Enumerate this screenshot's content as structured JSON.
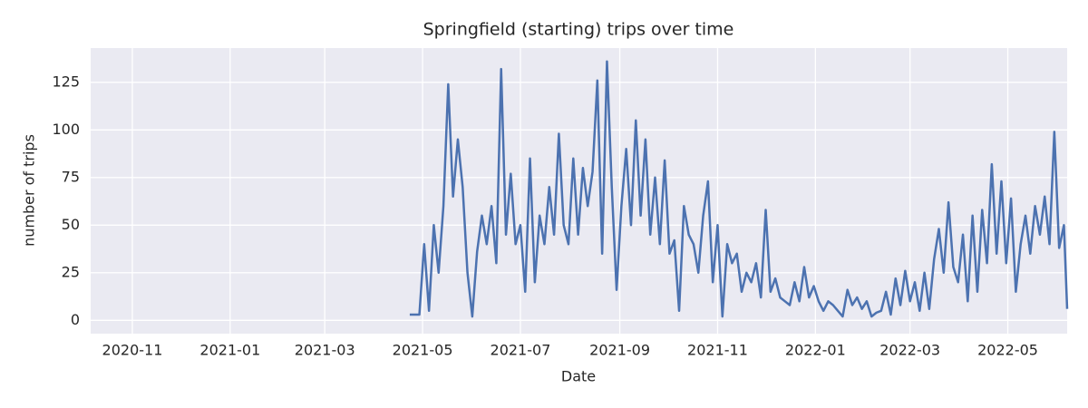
{
  "chart_data": {
    "type": "line",
    "title": "Springfield (starting) trips over time",
    "xlabel": "Date",
    "ylabel": "number of trips",
    "x": [
      "2021-04-23",
      "2021-04-26",
      "2021-04-29",
      "2021-05-02",
      "2021-05-05",
      "2021-05-08",
      "2021-05-11",
      "2021-05-14",
      "2021-05-17",
      "2021-05-20",
      "2021-05-23",
      "2021-05-26",
      "2021-05-29",
      "2021-06-01",
      "2021-06-04",
      "2021-06-07",
      "2021-06-10",
      "2021-06-13",
      "2021-06-16",
      "2021-06-19",
      "2021-06-22",
      "2021-06-25",
      "2021-06-28",
      "2021-07-01",
      "2021-07-04",
      "2021-07-07",
      "2021-07-10",
      "2021-07-13",
      "2021-07-16",
      "2021-07-19",
      "2021-07-22",
      "2021-07-25",
      "2021-07-28",
      "2021-07-31",
      "2021-08-03",
      "2021-08-06",
      "2021-08-09",
      "2021-08-12",
      "2021-08-15",
      "2021-08-18",
      "2021-08-21",
      "2021-08-24",
      "2021-08-27",
      "2021-08-30",
      "2021-09-02",
      "2021-09-05",
      "2021-09-08",
      "2021-09-11",
      "2021-09-14",
      "2021-09-17",
      "2021-09-20",
      "2021-09-23",
      "2021-09-26",
      "2021-09-29",
      "2021-10-02",
      "2021-10-05",
      "2021-10-08",
      "2021-10-11",
      "2021-10-14",
      "2021-10-17",
      "2021-10-20",
      "2021-10-23",
      "2021-10-26",
      "2021-10-29",
      "2021-11-01",
      "2021-11-04",
      "2021-11-07",
      "2021-11-10",
      "2021-11-13",
      "2021-11-16",
      "2021-11-19",
      "2021-11-22",
      "2021-11-25",
      "2021-11-28",
      "2021-12-01",
      "2021-12-04",
      "2021-12-07",
      "2021-12-10",
      "2021-12-13",
      "2021-12-16",
      "2021-12-19",
      "2021-12-22",
      "2021-12-25",
      "2021-12-28",
      "2021-12-31",
      "2022-01-03",
      "2022-01-06",
      "2022-01-09",
      "2022-01-12",
      "2022-01-15",
      "2022-01-18",
      "2022-01-21",
      "2022-01-24",
      "2022-01-27",
      "2022-01-30",
      "2022-02-02",
      "2022-02-05",
      "2022-02-08",
      "2022-02-11",
      "2022-02-14",
      "2022-02-17",
      "2022-02-20",
      "2022-02-23",
      "2022-02-26",
      "2022-03-01",
      "2022-03-04",
      "2022-03-07",
      "2022-03-10",
      "2022-03-13",
      "2022-03-16",
      "2022-03-19",
      "2022-03-22",
      "2022-03-25",
      "2022-03-28",
      "2022-03-31",
      "2022-04-03",
      "2022-04-06",
      "2022-04-09",
      "2022-04-12",
      "2022-04-15",
      "2022-04-18",
      "2022-04-21",
      "2022-04-24",
      "2022-04-27",
      "2022-04-30",
      "2022-05-03",
      "2022-05-06",
      "2022-05-09",
      "2022-05-12",
      "2022-05-15",
      "2022-05-18",
      "2022-05-21",
      "2022-05-24",
      "2022-05-27",
      "2022-05-30",
      "2022-06-02",
      "2022-06-05",
      "2022-06-07"
    ],
    "series": [
      {
        "name": "trips",
        "color": "#4c72b0",
        "values": [
          3,
          3,
          3,
          40,
          5,
          50,
          25,
          60,
          124,
          65,
          95,
          70,
          25,
          2,
          36,
          55,
          40,
          60,
          30,
          132,
          45,
          77,
          40,
          50,
          15,
          85,
          20,
          55,
          40,
          70,
          45,
          98,
          50,
          40,
          85,
          45,
          80,
          60,
          78,
          126,
          35,
          136,
          70,
          16,
          60,
          90,
          50,
          105,
          55,
          95,
          45,
          75,
          40,
          84,
          35,
          42,
          5,
          60,
          45,
          40,
          25,
          55,
          73,
          20,
          50,
          2,
          40,
          30,
          35,
          15,
          25,
          20,
          30,
          12,
          58,
          15,
          22,
          12,
          10,
          8,
          20,
          10,
          28,
          12,
          18,
          10,
          5,
          10,
          8,
          5,
          2,
          16,
          8,
          12,
          6,
          10,
          2,
          4,
          5,
          15,
          3,
          22,
          8,
          26,
          10,
          20,
          5,
          25,
          6,
          32,
          48,
          25,
          62,
          28,
          20,
          45,
          10,
          55,
          15,
          58,
          30,
          82,
          35,
          73,
          30,
          64,
          15,
          40,
          55,
          35,
          60,
          45,
          65,
          40,
          99,
          38,
          50,
          6
        ]
      }
    ],
    "xlim": [
      "2020-10-06",
      "2022-06-07"
    ],
    "xticks": [
      {
        "value": "2020-11-01",
        "label": "2020-11"
      },
      {
        "value": "2021-01-01",
        "label": "2021-01"
      },
      {
        "value": "2021-03-01",
        "label": "2021-03"
      },
      {
        "value": "2021-05-01",
        "label": "2021-05"
      },
      {
        "value": "2021-07-01",
        "label": "2021-07"
      },
      {
        "value": "2021-09-01",
        "label": "2021-09"
      },
      {
        "value": "2021-11-01",
        "label": "2021-11"
      },
      {
        "value": "2022-01-01",
        "label": "2022-01"
      },
      {
        "value": "2022-03-01",
        "label": "2022-03"
      },
      {
        "value": "2022-05-01",
        "label": "2022-05"
      }
    ],
    "ylim": [
      -7,
      143
    ],
    "yticks": [
      0,
      25,
      50,
      75,
      100,
      125
    ],
    "grid": true
  }
}
